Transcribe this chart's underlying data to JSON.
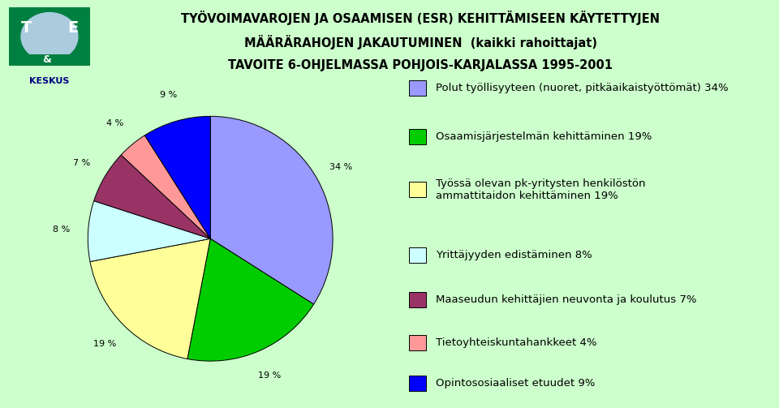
{
  "title_line1": "TYÖVOIMAVAROJEN JA OSAAMISEN (ESR) KEHITTÄMISEEN KÄYTETTYJEN",
  "title_line2": "MÄÄRÄRAHOJEN JAKAUTUMINEN  (kaikki rahoittajat)",
  "title_line3": "TAVOITE 6-OHJELMASSA POHJOIS-KARJALASSA 1995-2001",
  "slices": [
    34,
    19,
    19,
    8,
    7,
    4,
    9
  ],
  "labels": [
    "Polut työllisyyteen (nuoret, pitkäaikaistyöttömät) 34%",
    "Osaamisjärjestelmän kehittäminen 19%",
    "Työssä olevan pk-yritysten henkilöstön\nammattitaidon kehittäminen 19%",
    "Yrittäjyyden edistäminen 8%",
    "Maaseudun kehittäjien neuvonta ja koulutus 7%",
    "Tietoyhteiskuntahankkeet 4%",
    "Opintososiaaliset etuudet 9%"
  ],
  "pct_labels": [
    "34 %",
    "19 %",
    "19 %",
    "8 %",
    "7 %",
    "4 %",
    "9 %"
  ],
  "colors": [
    "#9999FF",
    "#00CC00",
    "#FFFF99",
    "#CCFFFF",
    "#993366",
    "#FF9999",
    "#0000FF"
  ],
  "background_color": "#CCFFCC",
  "startangle": 90,
  "title_fontsize": 10.5,
  "legend_fontsize": 9.5
}
